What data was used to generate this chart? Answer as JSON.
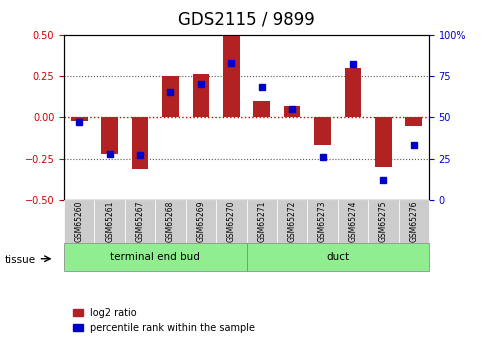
{
  "title": "GDS2115 / 9899",
  "categories": [
    "GSM65260",
    "GSM65261",
    "GSM65267",
    "GSM65268",
    "GSM65269",
    "GSM65270",
    "GSM65271",
    "GSM65272",
    "GSM65273",
    "GSM65274",
    "GSM65275",
    "GSM65276"
  ],
  "log2_ratio": [
    -0.02,
    -0.22,
    -0.31,
    0.25,
    0.26,
    0.5,
    0.1,
    0.07,
    -0.17,
    0.3,
    -0.3,
    -0.05
  ],
  "percentile_rank": [
    47,
    28,
    27,
    65,
    70,
    83,
    68,
    55,
    26,
    82,
    12,
    33
  ],
  "group1_label": "terminal end bud",
  "group1_count": 6,
  "group2_label": "duct",
  "group2_count": 6,
  "group_label": "tissue",
  "ylim_left": [
    -0.5,
    0.5
  ],
  "ylim_right": [
    0,
    100
  ],
  "yticks_left": [
    -0.5,
    -0.25,
    0.0,
    0.25,
    0.5
  ],
  "yticks_right": [
    0,
    25,
    50,
    75,
    100
  ],
  "bar_color": "#b22222",
  "dot_color": "#0000cc",
  "bg_color": "#ffffff",
  "hline_color_red": "#cc0000",
  "hline_color_black": "#555555",
  "group1_bg": "#90ee90",
  "group2_bg": "#90ee90",
  "sample_bg": "#cccccc",
  "legend_red": "log2 ratio",
  "legend_blue": "percentile rank within the sample",
  "title_fontsize": 12,
  "tick_fontsize": 7,
  "label_fontsize": 8
}
